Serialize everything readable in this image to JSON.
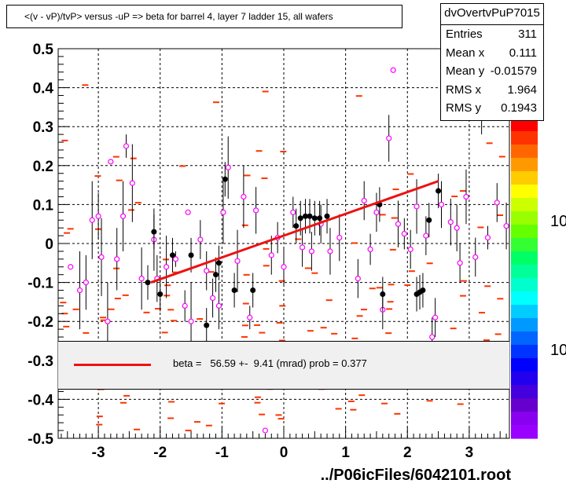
{
  "title": "<(v - vP)/tvP> versus  -uP => beta for barrel 4, layer 7 ladder 15, all wafers",
  "stats": {
    "name": "dvOvertvPuP7015",
    "rows": [
      {
        "label": "Entries",
        "value": "311"
      },
      {
        "label": "Mean x",
        "value": "0.111"
      },
      {
        "label": "Mean y",
        "value": "-0.01579"
      },
      {
        "label": "RMS x",
        "value": "1.964"
      },
      {
        "label": "RMS y",
        "value": "0.1943"
      }
    ]
  },
  "fit_legend": {
    "text": "beta =   56.59 +-  9.41 (mrad) prob = 0.377"
  },
  "file_label": "../P06icFiles/6042101.root",
  "palette_labels": [
    "10",
    "10"
  ],
  "colors": {
    "fit_line": "#ee1111",
    "profile_points": "#ff00ff",
    "hist_bins": "#ff3300"
  },
  "chart_data": {
    "type": "scatter",
    "title": "<(v - vP)/tvP> versus  -uP => beta for barrel 4, layer 7 ladder 15, all wafers",
    "xlabel": "",
    "ylabel": "",
    "xlim": [
      -3.65,
      3.65
    ],
    "ylim": [
      -0.5,
      0.5
    ],
    "xticks": [
      -3,
      -2,
      -1,
      0,
      1,
      2,
      3
    ],
    "yticks": [
      -0.5,
      -0.4,
      -0.3,
      -0.2,
      -0.1,
      0,
      0.1,
      0.2,
      0.3,
      0.4,
      0.5
    ],
    "xtick_labels": [
      "-3",
      "-2",
      "-1",
      "0",
      "1",
      "2",
      "3"
    ],
    "ytick_labels": [
      "-0.5",
      "-0.4",
      "-0.3",
      "-0.2",
      "-0.1",
      "0",
      "0.1",
      "0.2",
      "0.3",
      "0.4",
      "0.5"
    ],
    "grid": true,
    "fit_line": {
      "x": [
        -2.15,
        2.5
      ],
      "y": [
        -0.1,
        0.16
      ]
    },
    "profile_points": [
      {
        "x": -3.45,
        "y": -0.06,
        "err": 0.0
      },
      {
        "x": -3.3,
        "y": -0.12,
        "err": 0.1
      },
      {
        "x": -3.2,
        "y": -0.1,
        "err": 0.07
      },
      {
        "x": -3.1,
        "y": 0.06,
        "err": 0.1
      },
      {
        "x": -3.0,
        "y": 0.07,
        "err": 0.06
      },
      {
        "x": -2.95,
        "y": -0.035,
        "err": 0.1
      },
      {
        "x": -2.85,
        "y": -0.2,
        "err": 0.1
      },
      {
        "x": -2.8,
        "y": 0.21,
        "err": 0.0
      },
      {
        "x": -2.7,
        "y": -0.04,
        "err": 0.08
      },
      {
        "x": -2.6,
        "y": 0.07,
        "err": 0.09
      },
      {
        "x": -2.55,
        "y": 0.25,
        "err": 0.03
      },
      {
        "x": -2.45,
        "y": 0.155,
        "err": 0.1
      },
      {
        "x": -2.3,
        "y": -0.09,
        "err": 0.08
      },
      {
        "x": -2.1,
        "y": 0.01,
        "err": 0.08
      },
      {
        "x": -2.05,
        "y": -0.09,
        "err": 0.06
      },
      {
        "x": -1.9,
        "y": -0.06,
        "err": 0.08
      },
      {
        "x": -1.75,
        "y": -0.04,
        "err": 0.02
      },
      {
        "x": -1.6,
        "y": -0.16,
        "err": 0.04
      },
      {
        "x": -1.55,
        "y": 0.08,
        "err": 0.0
      },
      {
        "x": -1.5,
        "y": -0.2,
        "err": 0.1
      },
      {
        "x": -1.35,
        "y": 0.01,
        "err": 0.05
      },
      {
        "x": -1.25,
        "y": -0.07,
        "err": 0.05
      },
      {
        "x": -1.15,
        "y": -0.14,
        "err": 0.05
      },
      {
        "x": -1.05,
        "y": -0.16,
        "err": 0.06
      },
      {
        "x": -0.98,
        "y": 0.08,
        "err": 0.08
      },
      {
        "x": -0.9,
        "y": 0.195,
        "err": 0.08
      },
      {
        "x": -0.75,
        "y": -0.045,
        "err": 0.08
      },
      {
        "x": -0.65,
        "y": 0.12,
        "err": 0.08
      },
      {
        "x": -0.55,
        "y": -0.19,
        "err": 0.03
      },
      {
        "x": -0.45,
        "y": 0.085,
        "err": 0.06
      },
      {
        "x": -0.3,
        "y": -0.48,
        "err": 0.0
      },
      {
        "x": -0.2,
        "y": -0.03,
        "err": 0.05
      },
      {
        "x": -0.1,
        "y": 0.015,
        "err": 0.04
      },
      {
        "x": 0.0,
        "y": -0.06,
        "err": 0.05
      },
      {
        "x": 0.15,
        "y": 0.08,
        "err": 0.04
      },
      {
        "x": 0.3,
        "y": -0.01,
        "err": 0.05
      },
      {
        "x": 0.45,
        "y": -0.02,
        "err": 0.05
      },
      {
        "x": 0.6,
        "y": 0.05,
        "err": 0.05
      },
      {
        "x": 0.75,
        "y": -0.02,
        "err": 0.06
      },
      {
        "x": 0.9,
        "y": 0.015,
        "err": 0.06
      },
      {
        "x": 1.2,
        "y": -0.09,
        "err": 0.05
      },
      {
        "x": 1.3,
        "y": 0.11,
        "err": 0.05
      },
      {
        "x": 1.4,
        "y": -0.015,
        "err": 0.04
      },
      {
        "x": 1.5,
        "y": 0.08,
        "err": 0.05
      },
      {
        "x": 1.6,
        "y": -0.17,
        "err": 0.05
      },
      {
        "x": 1.7,
        "y": 0.27,
        "err": 0.06
      },
      {
        "x": 1.77,
        "y": 0.445,
        "err": 0.0
      },
      {
        "x": 1.85,
        "y": 0.05,
        "err": 0.06
      },
      {
        "x": 1.95,
        "y": 0.025,
        "err": 0.04
      },
      {
        "x": 2.05,
        "y": -0.015,
        "err": 0.05
      },
      {
        "x": 2.15,
        "y": 0.095,
        "err": 0.07
      },
      {
        "x": 2.3,
        "y": 0.02,
        "err": 0.05
      },
      {
        "x": 2.4,
        "y": -0.24,
        "err": 0.05
      },
      {
        "x": 2.45,
        "y": -0.19,
        "err": 0.05
      },
      {
        "x": 2.55,
        "y": 0.1,
        "err": 0.06
      },
      {
        "x": 2.7,
        "y": 0.055,
        "err": 0.06
      },
      {
        "x": 2.8,
        "y": 0.04,
        "err": 0.06
      },
      {
        "x": 2.85,
        "y": -0.05,
        "err": 0.05
      },
      {
        "x": 2.95,
        "y": 0.12,
        "err": 0.07
      },
      {
        "x": 3.1,
        "y": -0.035,
        "err": 0.05
      },
      {
        "x": 3.2,
        "y": 0.33,
        "err": 0.05
      },
      {
        "x": 3.3,
        "y": 0.015,
        "err": 0.03
      },
      {
        "x": 3.45,
        "y": 0.105,
        "err": 0.05
      },
      {
        "x": 3.6,
        "y": 0.045,
        "err": 0.06
      }
    ],
    "high_stat_points": [
      {
        "x": -2.2,
        "y": -0.1
      },
      {
        "x": -2.1,
        "y": 0.03
      },
      {
        "x": -2.0,
        "y": -0.13
      },
      {
        "x": -1.8,
        "y": -0.03
      },
      {
        "x": -1.5,
        "y": -0.03
      },
      {
        "x": -1.25,
        "y": -0.21
      },
      {
        "x": -1.1,
        "y": -0.08
      },
      {
        "x": -1.05,
        "y": -0.05
      },
      {
        "x": -0.95,
        "y": 0.165
      },
      {
        "x": -0.8,
        "y": -0.12
      },
      {
        "x": -0.5,
        "y": -0.12
      },
      {
        "x": 0.2,
        "y": 0.045
      },
      {
        "x": 0.27,
        "y": 0.065
      },
      {
        "x": 0.35,
        "y": 0.07
      },
      {
        "x": 0.42,
        "y": 0.07
      },
      {
        "x": 0.5,
        "y": 0.065
      },
      {
        "x": 0.58,
        "y": 0.065
      },
      {
        "x": 0.7,
        "y": 0.07
      },
      {
        "x": 1.55,
        "y": 0.1
      },
      {
        "x": 1.6,
        "y": -0.13
      },
      {
        "x": 2.15,
        "y": -0.13
      },
      {
        "x": 2.2,
        "y": -0.125
      },
      {
        "x": 2.25,
        "y": -0.12
      },
      {
        "x": 2.35,
        "y": 0.06
      },
      {
        "x": 2.5,
        "y": 0.135
      }
    ]
  }
}
